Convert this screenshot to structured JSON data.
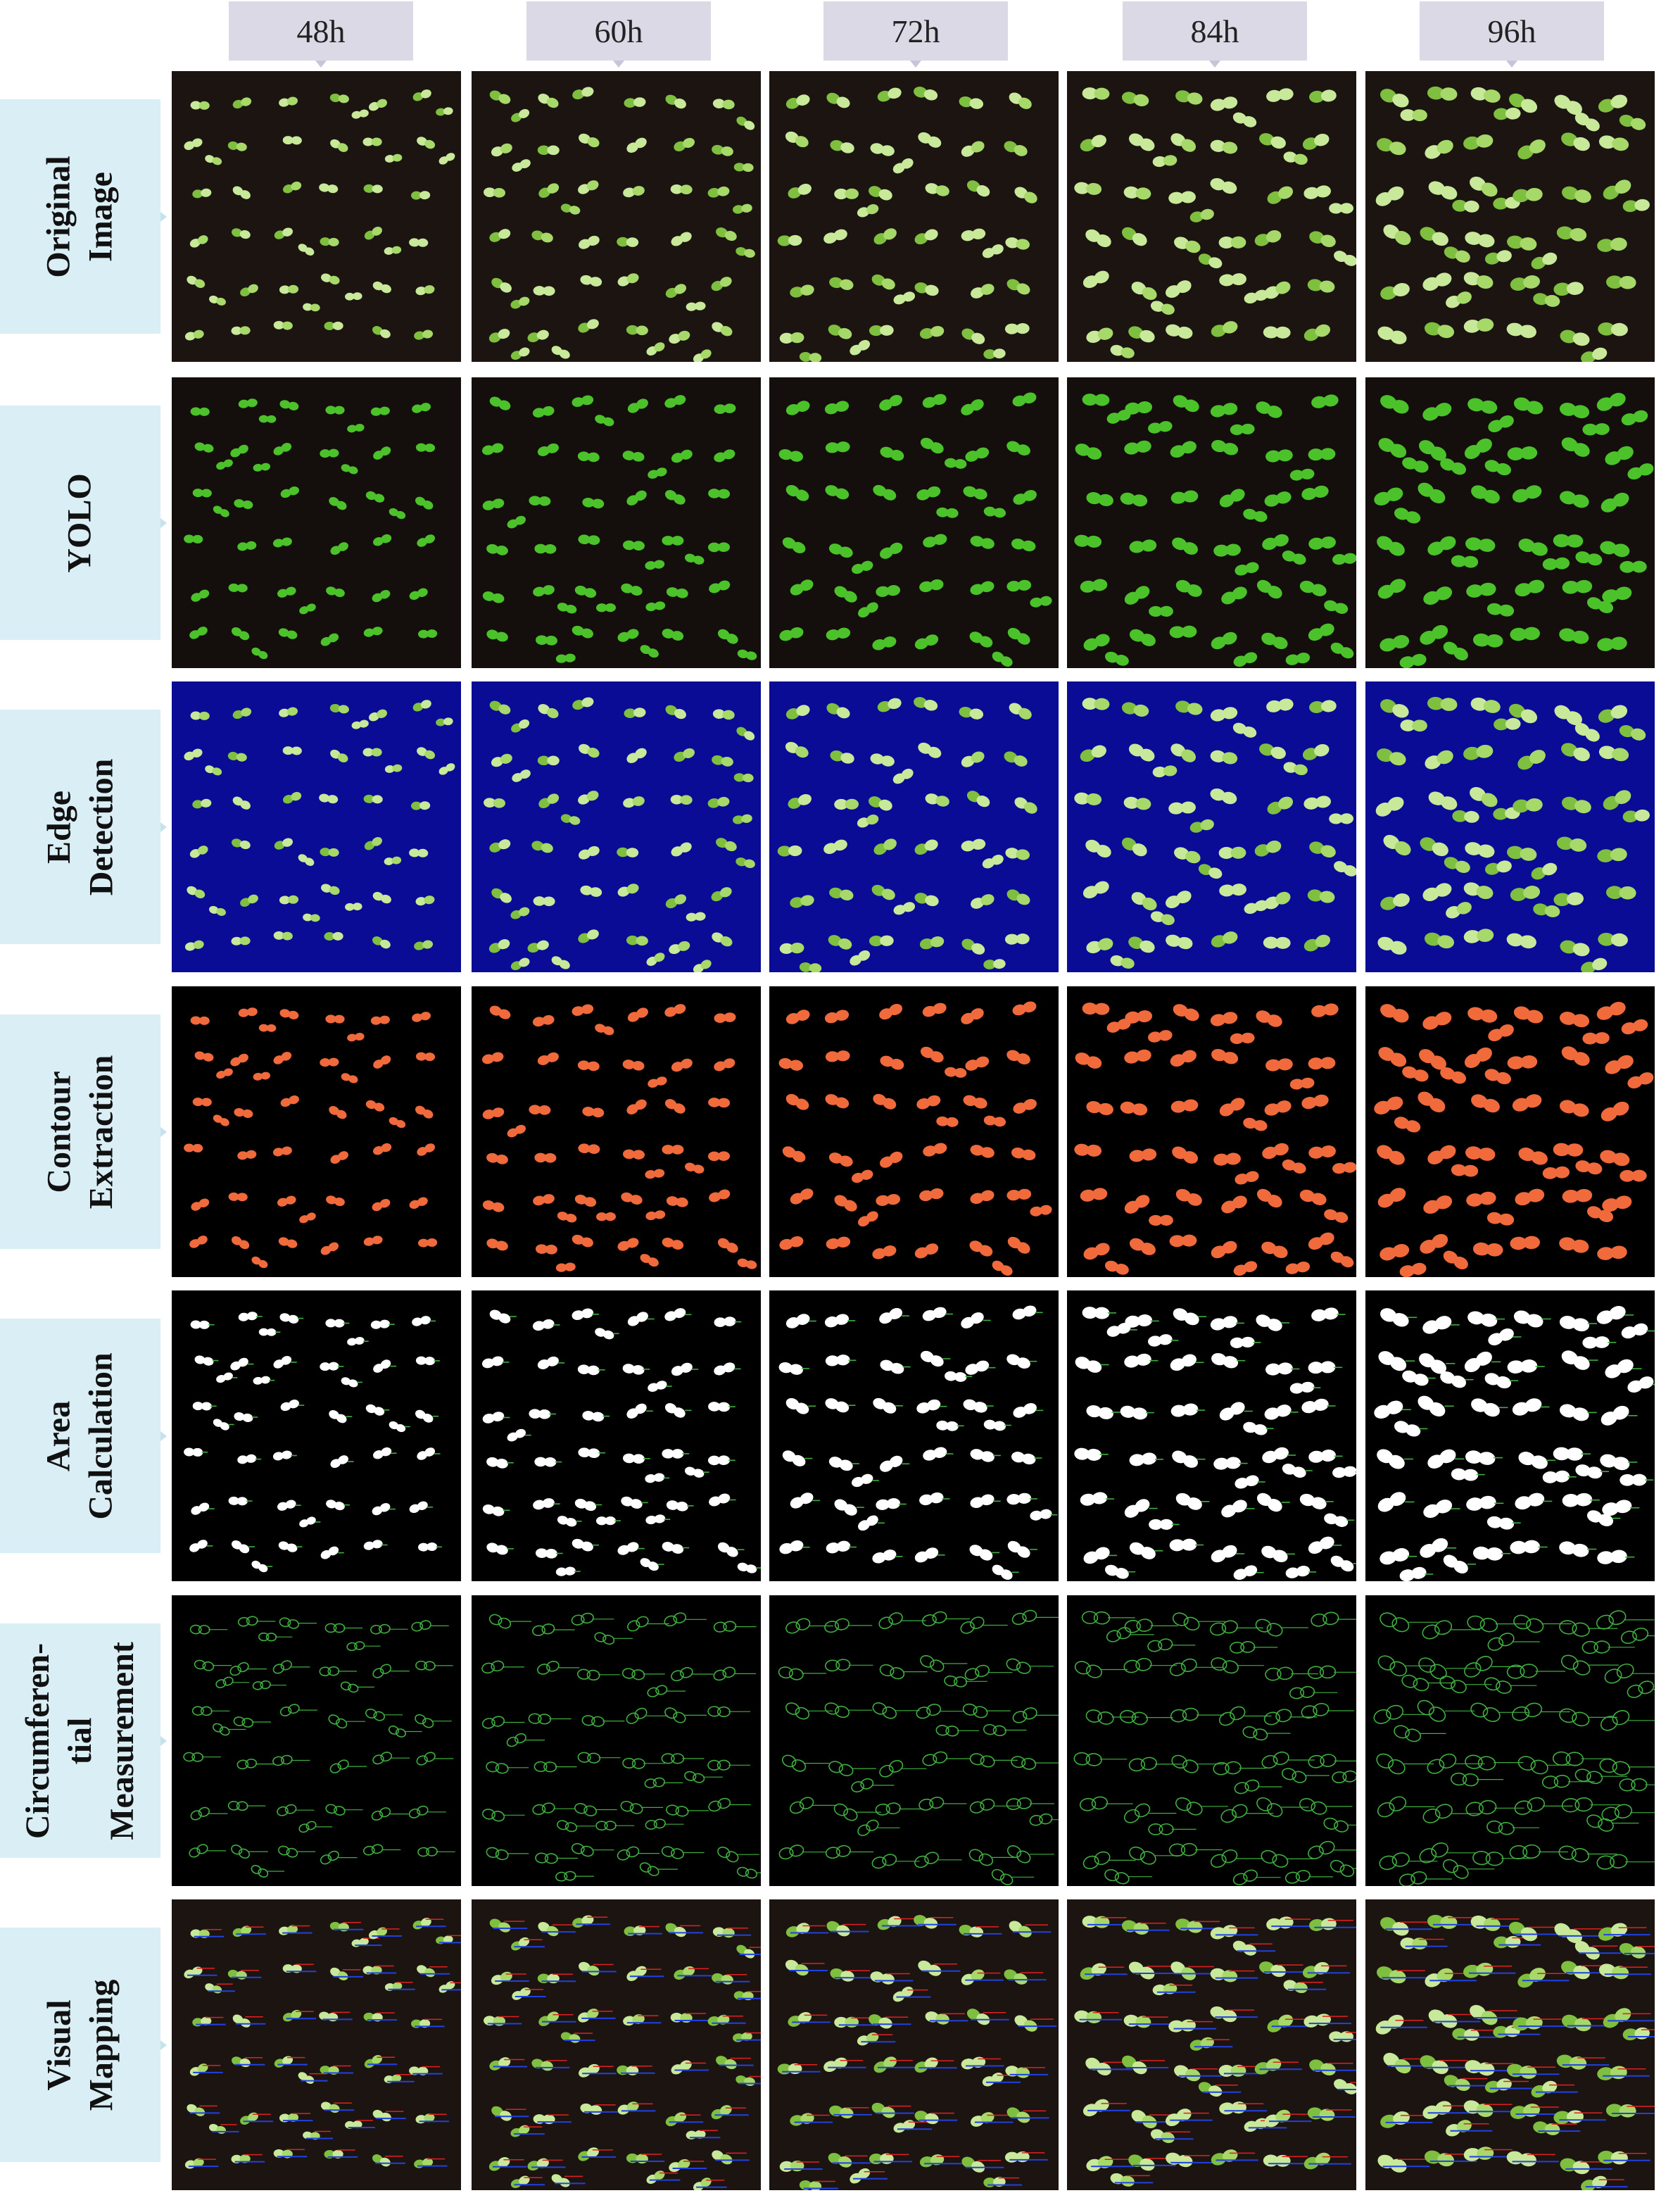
{
  "columns": [
    {
      "label": "48h"
    },
    {
      "label": "60h"
    },
    {
      "label": "72h"
    },
    {
      "label": "84h"
    },
    {
      "label": "96h"
    }
  ],
  "rows": [
    {
      "label_lines": [
        "Original",
        "Image"
      ],
      "style": "original",
      "background": "#1c1410"
    },
    {
      "label_lines": [
        "YOLO"
      ],
      "style": "yolo",
      "background": "#140f0c"
    },
    {
      "label_lines": [
        "Edge",
        "Detection"
      ],
      "style": "edge",
      "background": "#0a0c96"
    },
    {
      "label_lines": [
        "Contour",
        "Extraction"
      ],
      "style": "contour",
      "background": "#000000"
    },
    {
      "label_lines": [
        "Area",
        "Calculation"
      ],
      "style": "area",
      "background": "#000000"
    },
    {
      "label_lines": [
        "Circumferen-",
        "tial",
        "Measurement"
      ],
      "style": "perimeter",
      "background": "#000000"
    },
    {
      "label_lines": [
        "Visual",
        "Mapping"
      ],
      "style": "mapping",
      "background": "#1c1410"
    }
  ],
  "colors": {
    "header_bg": "#dcd9e6",
    "label_bg": "#daeef5",
    "seedling_light": "#c8e89a",
    "seedling_green": "#4cc22a",
    "contour_orange": "#f06a3c",
    "edge_blue": "#0a0c96",
    "outline_green": "#3fae3f",
    "mapping_red": "#e02020",
    "mapping_blue": "#2040e0"
  }
}
